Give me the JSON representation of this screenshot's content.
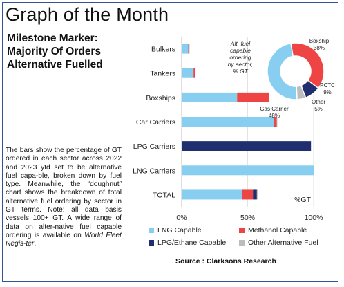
{
  "header": {
    "title": "Graph of the Month",
    "subtitle_lines": [
      "Milestone Marker:",
      "Majority Of Orders",
      "Alternative Fuelled"
    ]
  },
  "body_text": {
    "main": "The bars show the percentage of GT ordered in each sector across 2022 and 2023 ytd set to be alternative fuel capa-ble, broken down by fuel type. Meanwhile, the “doughnut” chart shows the breakdown of total alternative fuel ordering by sector in GT terms. Note: all data basis vessels 100+ GT. A wide range of data on alter-native fuel capable ordering is available on ",
    "italic": "World Fleet Regis-ter",
    "end": "."
  },
  "source": "Source : Clarksons Research",
  "colors": {
    "lng": "#87cef0",
    "methanol": "#ef4444",
    "lpg": "#1f2e6e",
    "other": "#bdbdbd",
    "frame": "#2f5597",
    "grid": "#e3e3e3"
  },
  "chart_data": [
    {
      "type": "bar",
      "orientation": "horizontal",
      "stacked": true,
      "categories": [
        "Bulkers",
        "Tankers",
        "Boxships",
        "Car Carriers",
        "LPG Carriers",
        "LNG Carriers",
        "TOTAL"
      ],
      "series": [
        {
          "name": "LNG Capable",
          "color_key": "lng",
          "values": [
            5,
            9,
            42,
            70,
            0,
            100,
            46
          ]
        },
        {
          "name": "Methanol Capable",
          "color_key": "methanol",
          "values": [
            0.5,
            1,
            24,
            2,
            0,
            0,
            8
          ]
        },
        {
          "name": "LPG/Ethane Capable",
          "color_key": "lpg",
          "values": [
            0,
            0,
            0,
            0,
            98,
            0,
            3
          ]
        },
        {
          "name": "Other Alternative Fuel",
          "color_key": "other",
          "values": [
            0.5,
            0.5,
            0,
            0.5,
            0,
            0,
            0.5
          ]
        }
      ],
      "x_ticks": [
        "0%",
        "50%",
        "100%"
      ],
      "xlim": [
        0,
        100
      ],
      "unit_label": "%GT",
      "grid": true,
      "legend": "bottom"
    },
    {
      "type": "pie",
      "style": "doughnut",
      "title_lines": [
        "Alt. fuel",
        "capable",
        "ordering",
        "by sector,",
        "% GT"
      ],
      "slices": [
        {
          "label": "Boxship",
          "value": 38,
          "color": "#ef4444",
          "value_label": "38%"
        },
        {
          "label": "PCTC",
          "value": 9,
          "color": "#1f2e6e",
          "value_label": "9%"
        },
        {
          "label": "Other",
          "value": 5,
          "color": "#bdbdbd",
          "value_label": "5%"
        },
        {
          "label": "Gas Carrier",
          "value": 48,
          "color": "#87cef0",
          "value_label": "48%"
        }
      ]
    }
  ]
}
